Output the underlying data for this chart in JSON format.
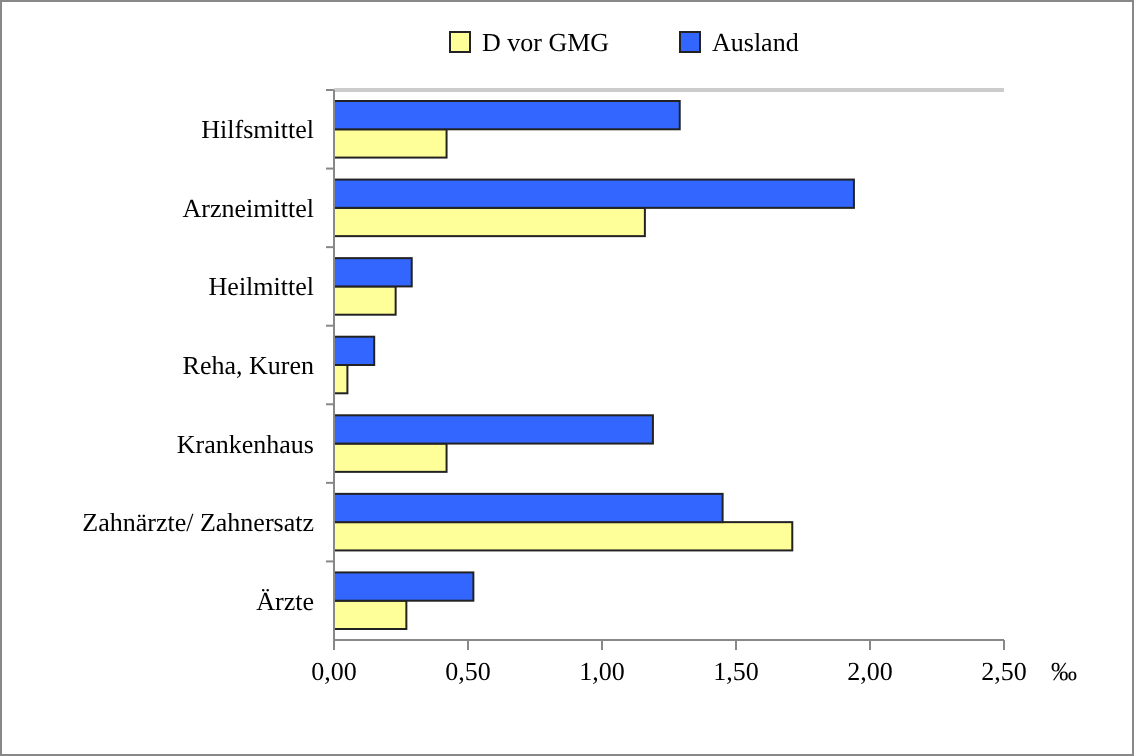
{
  "chart_data": {
    "type": "bar",
    "orientation": "horizontal",
    "xlabel": "‰",
    "categories": [
      "Hilfsmittel",
      "Arzneimittel",
      "Heilmittel",
      "Reha, Kuren",
      "Krankenhaus",
      "Zahnärzte/ Zahnersatz",
      "Ärzte"
    ],
    "series": [
      {
        "name": "D vor GMG",
        "color": "#ffff99",
        "values": [
          0.42,
          1.16,
          0.23,
          0.05,
          0.42,
          1.71,
          0.27
        ]
      },
      {
        "name": "Ausland",
        "color": "#3366ff",
        "values": [
          1.29,
          1.94,
          0.29,
          0.15,
          1.19,
          1.45,
          0.52
        ]
      }
    ],
    "xlim": [
      0,
      2.5
    ],
    "xticks": [
      {
        "value": 0,
        "label": "0,00"
      },
      {
        "value": 0.5,
        "label": "0,50"
      },
      {
        "value": 1,
        "label": "1,00"
      },
      {
        "value": 1.5,
        "label": "1,50"
      },
      {
        "value": 2,
        "label": "2,00"
      },
      {
        "value": 2.5,
        "label": "2,50"
      }
    ],
    "grid": false,
    "legend": "top"
  }
}
